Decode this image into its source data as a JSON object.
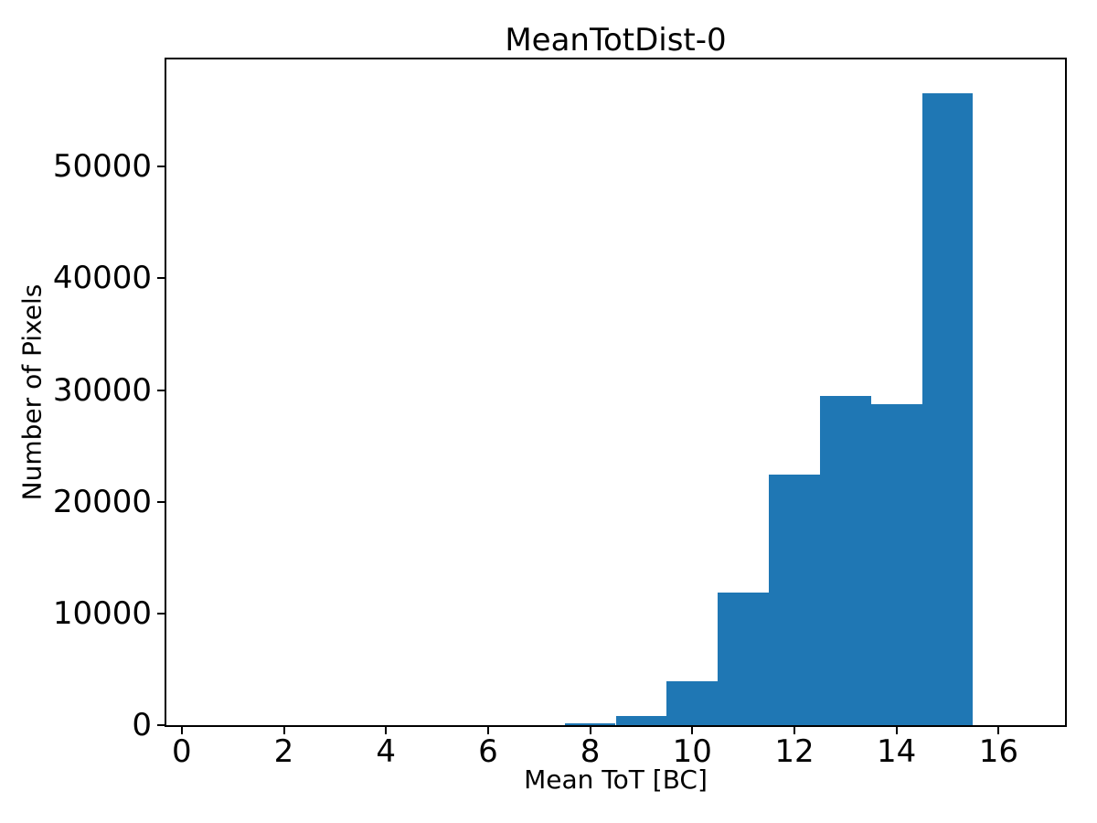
{
  "figure": {
    "background": "#ffffff"
  },
  "chart_data": {
    "type": "bar",
    "subtype": "histogram",
    "title": "MeanTotDist-0",
    "xlabel": "Mean ToT [BC]",
    "ylabel": "Number of Pixels",
    "bar_color": "#1f77b4",
    "axis_color": "#000000",
    "text_color": "#000000",
    "grid": false,
    "xlim": [
      -0.3,
      17.3
    ],
    "ylim": [
      0,
      59600
    ],
    "xticks": [
      0,
      2,
      4,
      6,
      8,
      10,
      12,
      14,
      16
    ],
    "yticks": [
      0,
      10000,
      20000,
      30000,
      40000,
      50000
    ],
    "bin_edges": [
      0.5,
      1.5,
      2.5,
      3.5,
      4.5,
      5.5,
      6.5,
      7.5,
      8.5,
      9.5,
      10.5,
      11.5,
      12.5,
      13.5,
      14.5,
      15.5,
      16.5
    ],
    "counts": [
      0,
      0,
      0,
      0,
      0,
      0,
      0,
      200,
      800,
      3900,
      11900,
      22400,
      29500,
      28700,
      56600,
      0
    ]
  }
}
